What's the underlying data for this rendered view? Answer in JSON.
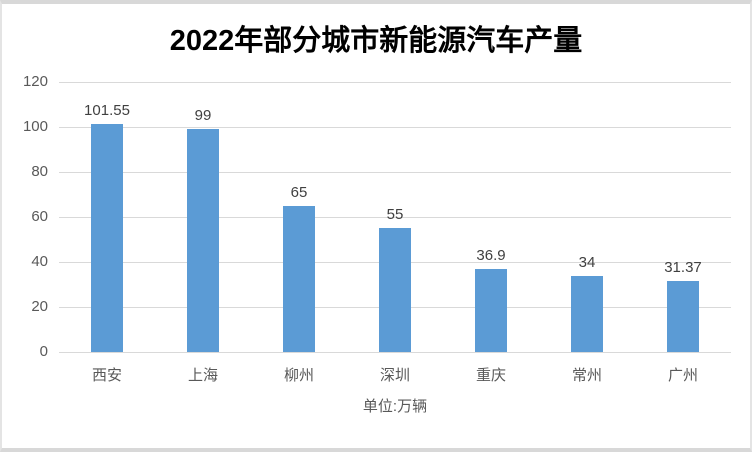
{
  "page": {
    "title": "2022年部分城市新能源汽车产量",
    "footer_unit": "单位:万辆"
  },
  "chart_data": {
    "type": "bar",
    "title": "2022年部分城市新能源汽车产量",
    "categories": [
      "西安",
      "上海",
      "柳州",
      "深圳",
      "重庆",
      "常州",
      "广州"
    ],
    "values": [
      101.55,
      99,
      65,
      55,
      36.9,
      34,
      31.37
    ],
    "data_labels": [
      "101.55",
      "99",
      "65",
      "55",
      "36.9",
      "34",
      "31.37"
    ],
    "xlabel": "单位:万辆",
    "ylabel": "",
    "ylim": [
      0,
      120
    ],
    "yticks": [
      0,
      20,
      40,
      60,
      80,
      100,
      120
    ],
    "grid": "horizontal-only",
    "legend": "none",
    "colors": {
      "bar": "#5B9BD5",
      "gridline": "#D9D9D9",
      "axis_label": "#595959",
      "data_label": "#404040",
      "title": "#000000",
      "frame_border": "#D8D8D8",
      "background": "#FFFFFF"
    }
  }
}
